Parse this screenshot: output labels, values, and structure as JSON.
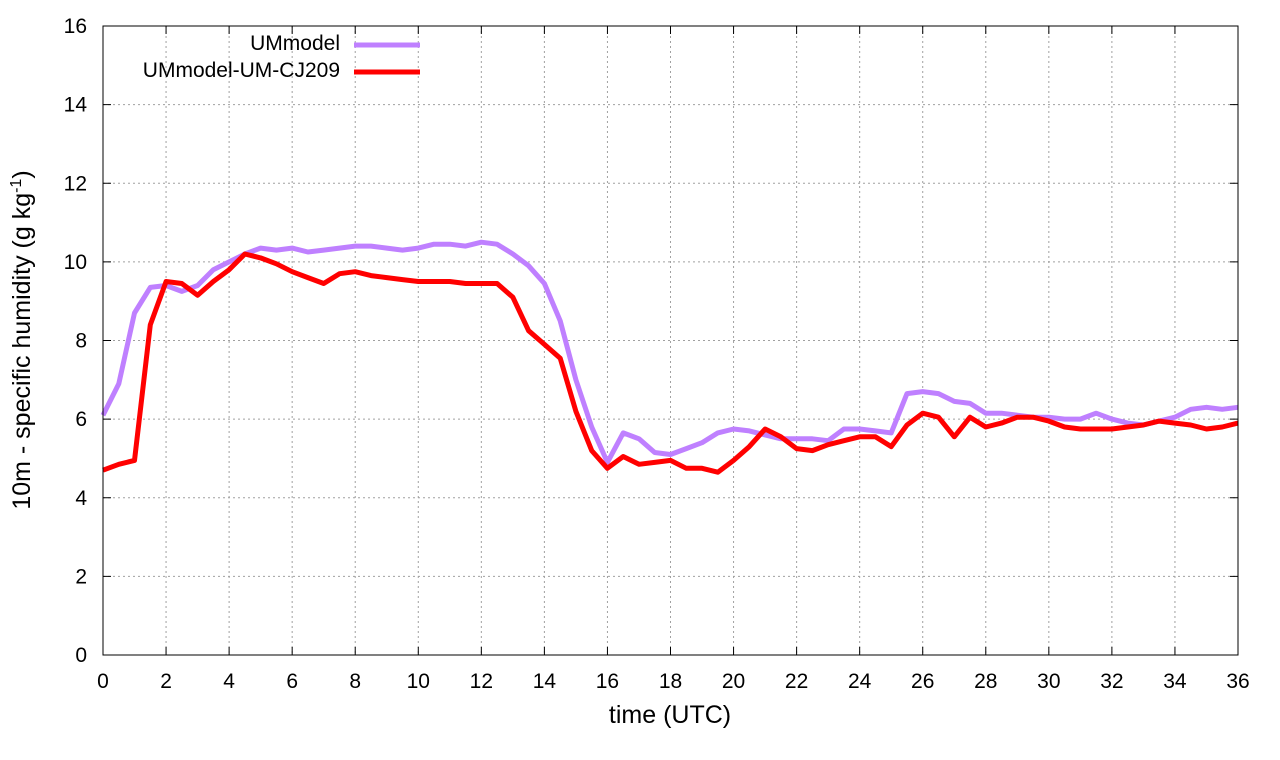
{
  "chart_data": {
    "type": "line",
    "xlabel": "time (UTC)",
    "ylabel": {
      "prefix": "10m - specific humidity (g kg",
      "superscript": "-1",
      "suffix": ")"
    },
    "xlim": [
      0,
      36
    ],
    "ylim": [
      0,
      16
    ],
    "xticks": [
      0,
      2,
      4,
      6,
      8,
      10,
      12,
      14,
      16,
      18,
      20,
      22,
      24,
      26,
      28,
      30,
      32,
      34,
      36
    ],
    "yticks": [
      0,
      2,
      4,
      6,
      8,
      10,
      12,
      14,
      16
    ],
    "grid": true,
    "legend_position": "top-left",
    "series": [
      {
        "name": "UMmodel",
        "color": "#bf80ff",
        "x": [
          0,
          0.5,
          1,
          1.5,
          2,
          2.5,
          3,
          3.5,
          4,
          4.5,
          5,
          5.5,
          6,
          6.5,
          7,
          7.5,
          8,
          8.5,
          9,
          9.5,
          10,
          10.5,
          11,
          11.5,
          12,
          12.5,
          13,
          13.5,
          14,
          14.5,
          15,
          15.5,
          16,
          16.5,
          17,
          17.5,
          18,
          18.5,
          19,
          19.5,
          20,
          20.5,
          21,
          21.5,
          22,
          22.5,
          23,
          23.5,
          24,
          24.5,
          25,
          25.5,
          26,
          26.5,
          27,
          27.5,
          28,
          28.5,
          29,
          29.5,
          30,
          30.5,
          31,
          31.5,
          32,
          32.5,
          33,
          33.5,
          34,
          34.5,
          35,
          35.5,
          36
        ],
        "y": [
          6.1,
          6.9,
          8.7,
          9.35,
          9.4,
          9.25,
          9.4,
          9.8,
          10.0,
          10.2,
          10.35,
          10.3,
          10.35,
          10.25,
          10.3,
          10.35,
          10.4,
          10.4,
          10.35,
          10.3,
          10.35,
          10.45,
          10.45,
          10.4,
          10.5,
          10.45,
          10.2,
          9.9,
          9.45,
          8.5,
          7.0,
          5.8,
          4.9,
          5.65,
          5.5,
          5.15,
          5.1,
          5.25,
          5.4,
          5.65,
          5.75,
          5.7,
          5.6,
          5.5,
          5.5,
          5.5,
          5.45,
          5.75,
          5.75,
          5.7,
          5.65,
          6.65,
          6.7,
          6.65,
          6.45,
          6.4,
          6.15,
          6.15,
          6.1,
          6.05,
          6.05,
          6.0,
          6.0,
          6.15,
          6.0,
          5.9,
          5.85,
          5.95,
          6.05,
          6.25,
          6.3,
          6.25,
          6.3
        ]
      },
      {
        "name": "UMmodel-UM-CJ209",
        "color": "#ff0000",
        "x": [
          0,
          0.5,
          1,
          1.5,
          2,
          2.5,
          3,
          3.5,
          4,
          4.5,
          5,
          5.5,
          6,
          6.5,
          7,
          7.5,
          8,
          8.5,
          9,
          9.5,
          10,
          10.5,
          11,
          11.5,
          12,
          12.5,
          13,
          13.5,
          14,
          14.5,
          15,
          15.5,
          16,
          16.5,
          17,
          17.5,
          18,
          18.5,
          19,
          19.5,
          20,
          20.5,
          21,
          21.5,
          22,
          22.5,
          23,
          23.5,
          24,
          24.5,
          25,
          25.5,
          26,
          26.5,
          27,
          27.5,
          28,
          28.5,
          29,
          29.5,
          30,
          30.5,
          31,
          31.5,
          32,
          32.5,
          33,
          33.5,
          34,
          34.5,
          35,
          35.5,
          36
        ],
        "y": [
          4.7,
          4.85,
          4.95,
          8.4,
          9.5,
          9.45,
          9.15,
          9.5,
          9.8,
          10.2,
          10.1,
          9.95,
          9.75,
          9.6,
          9.45,
          9.7,
          9.75,
          9.65,
          9.6,
          9.55,
          9.5,
          9.5,
          9.5,
          9.45,
          9.45,
          9.45,
          9.1,
          8.25,
          7.9,
          7.55,
          6.2,
          5.2,
          4.75,
          5.05,
          4.85,
          4.9,
          4.95,
          4.75,
          4.75,
          4.65,
          4.95,
          5.3,
          5.75,
          5.55,
          5.25,
          5.2,
          5.35,
          5.45,
          5.55,
          5.55,
          5.3,
          5.85,
          6.15,
          6.05,
          5.55,
          6.05,
          5.8,
          5.9,
          6.05,
          6.05,
          5.95,
          5.8,
          5.75,
          5.75,
          5.75,
          5.8,
          5.85,
          5.95,
          5.9,
          5.85,
          5.75,
          5.8,
          5.9
        ]
      }
    ]
  }
}
